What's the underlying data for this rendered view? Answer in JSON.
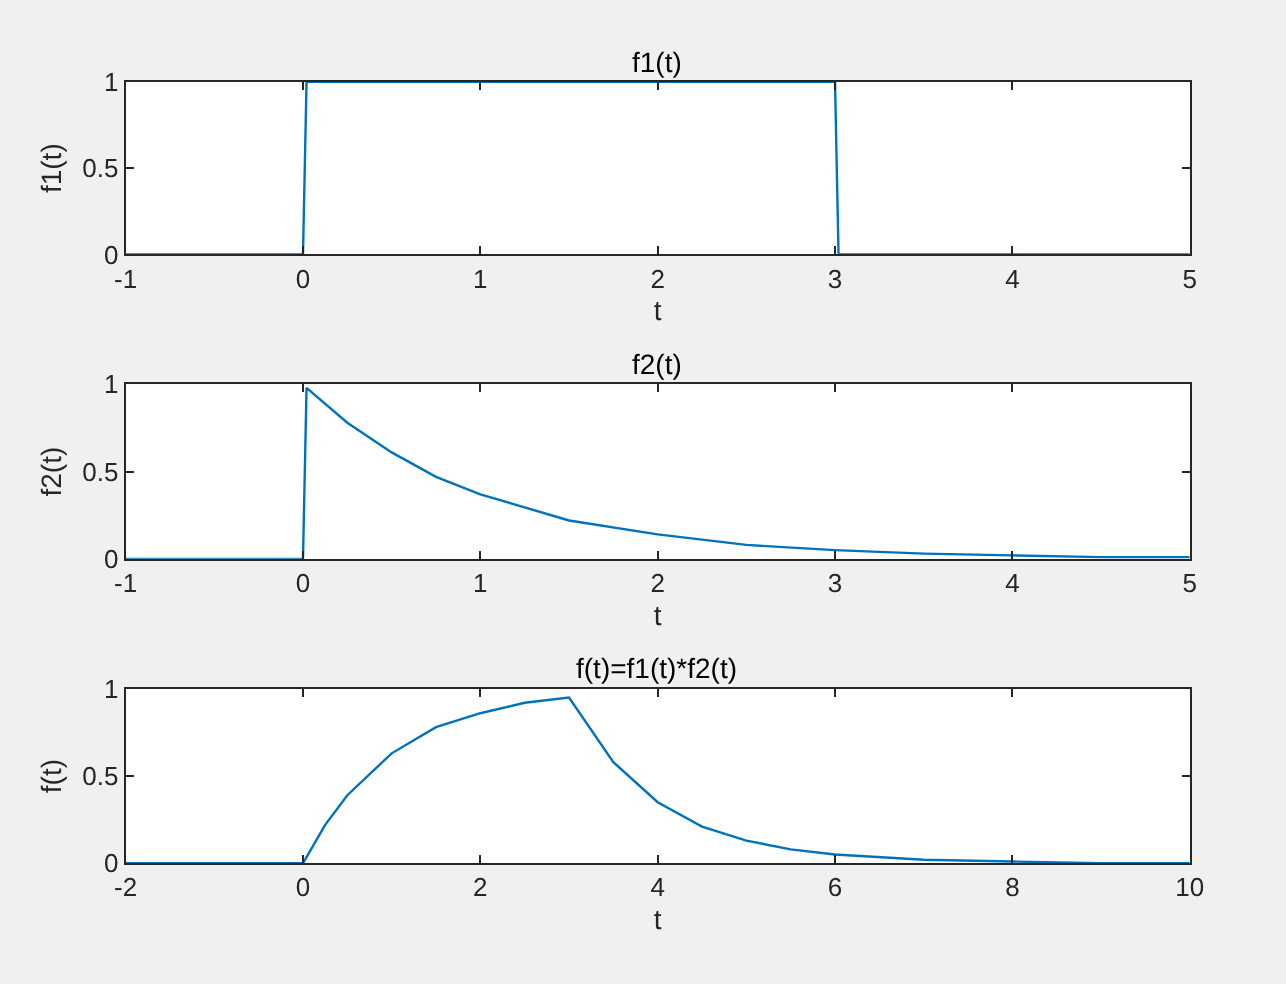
{
  "chart_data": [
    {
      "type": "line",
      "title": "f1(t)",
      "xlabel": "t",
      "ylabel": "f1(t)",
      "xlim": [
        -1,
        5
      ],
      "xticks": [
        -1,
        0,
        1,
        2,
        3,
        4,
        5
      ],
      "ylim": [
        0,
        1
      ],
      "yticks": [
        0,
        0.5,
        1
      ],
      "series": [
        {
          "color": "#0072bd",
          "x": [
            -1,
            0,
            0.02,
            3,
            3.02,
            5
          ],
          "values": [
            0,
            0,
            1,
            1,
            0,
            0
          ]
        }
      ]
    },
    {
      "type": "line",
      "title": "f2(t)",
      "xlabel": "t",
      "ylabel": "f2(t)",
      "xlim": [
        -1,
        5
      ],
      "xticks": [
        -1,
        0,
        1,
        2,
        3,
        4,
        5
      ],
      "ylim": [
        0,
        1
      ],
      "yticks": [
        0,
        0.5,
        1
      ],
      "series": [
        {
          "color": "#0072bd",
          "x": [
            -1,
            0,
            0.02,
            0.25,
            0.5,
            0.75,
            1,
            1.5,
            2,
            2.5,
            3,
            3.5,
            4,
            4.5,
            5
          ],
          "values": [
            0,
            0,
            0.98,
            0.78,
            0.61,
            0.47,
            0.37,
            0.22,
            0.14,
            0.08,
            0.05,
            0.03,
            0.02,
            0.01,
            0.01
          ]
        }
      ]
    },
    {
      "type": "line",
      "title": "f(t)=f1(t)*f2(t)",
      "xlabel": "t",
      "ylabel": "f(t)",
      "xlim": [
        -2,
        10
      ],
      "xticks": [
        -2,
        0,
        2,
        4,
        6,
        8,
        10
      ],
      "ylim": [
        0,
        1
      ],
      "yticks": [
        0,
        0.5,
        1
      ],
      "series": [
        {
          "color": "#0072bd",
          "x": [
            -2,
            0,
            0.25,
            0.5,
            1,
            1.5,
            2,
            2.5,
            3,
            3.5,
            4,
            4.5,
            5,
            5.5,
            6,
            7,
            8,
            9,
            10
          ],
          "values": [
            0,
            0,
            0.22,
            0.39,
            0.63,
            0.78,
            0.86,
            0.92,
            0.95,
            0.58,
            0.35,
            0.21,
            0.13,
            0.08,
            0.05,
            0.02,
            0.01,
            0,
            0
          ]
        }
      ]
    }
  ]
}
